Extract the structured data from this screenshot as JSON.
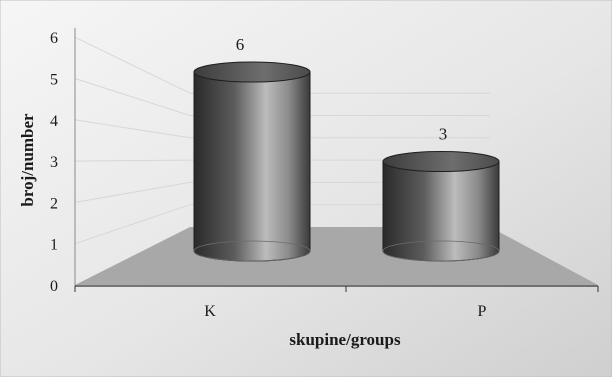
{
  "chart_data": {
    "type": "bar",
    "categories": [
      "K",
      "P"
    ],
    "values": [
      6,
      3
    ],
    "data_labels": [
      "6",
      "3"
    ],
    "title": "",
    "xlabel": "skupine/groups",
    "ylabel": "broj/number",
    "ylim": [
      0,
      6
    ],
    "y_ticks": [
      "0",
      "1",
      "2",
      "3",
      "4",
      "5",
      "6"
    ],
    "grid": true,
    "legend": "none",
    "style": "3d-cylinder",
    "colors": {
      "background_light": "#f4f4f4",
      "background_dark": "#d2d2d2",
      "floor": "#a9a9a9",
      "bar_dark": "#2f2f2f",
      "bar_light": "#bdbdbd",
      "gridline": "#d6d6d6",
      "axis": "#333333"
    }
  }
}
